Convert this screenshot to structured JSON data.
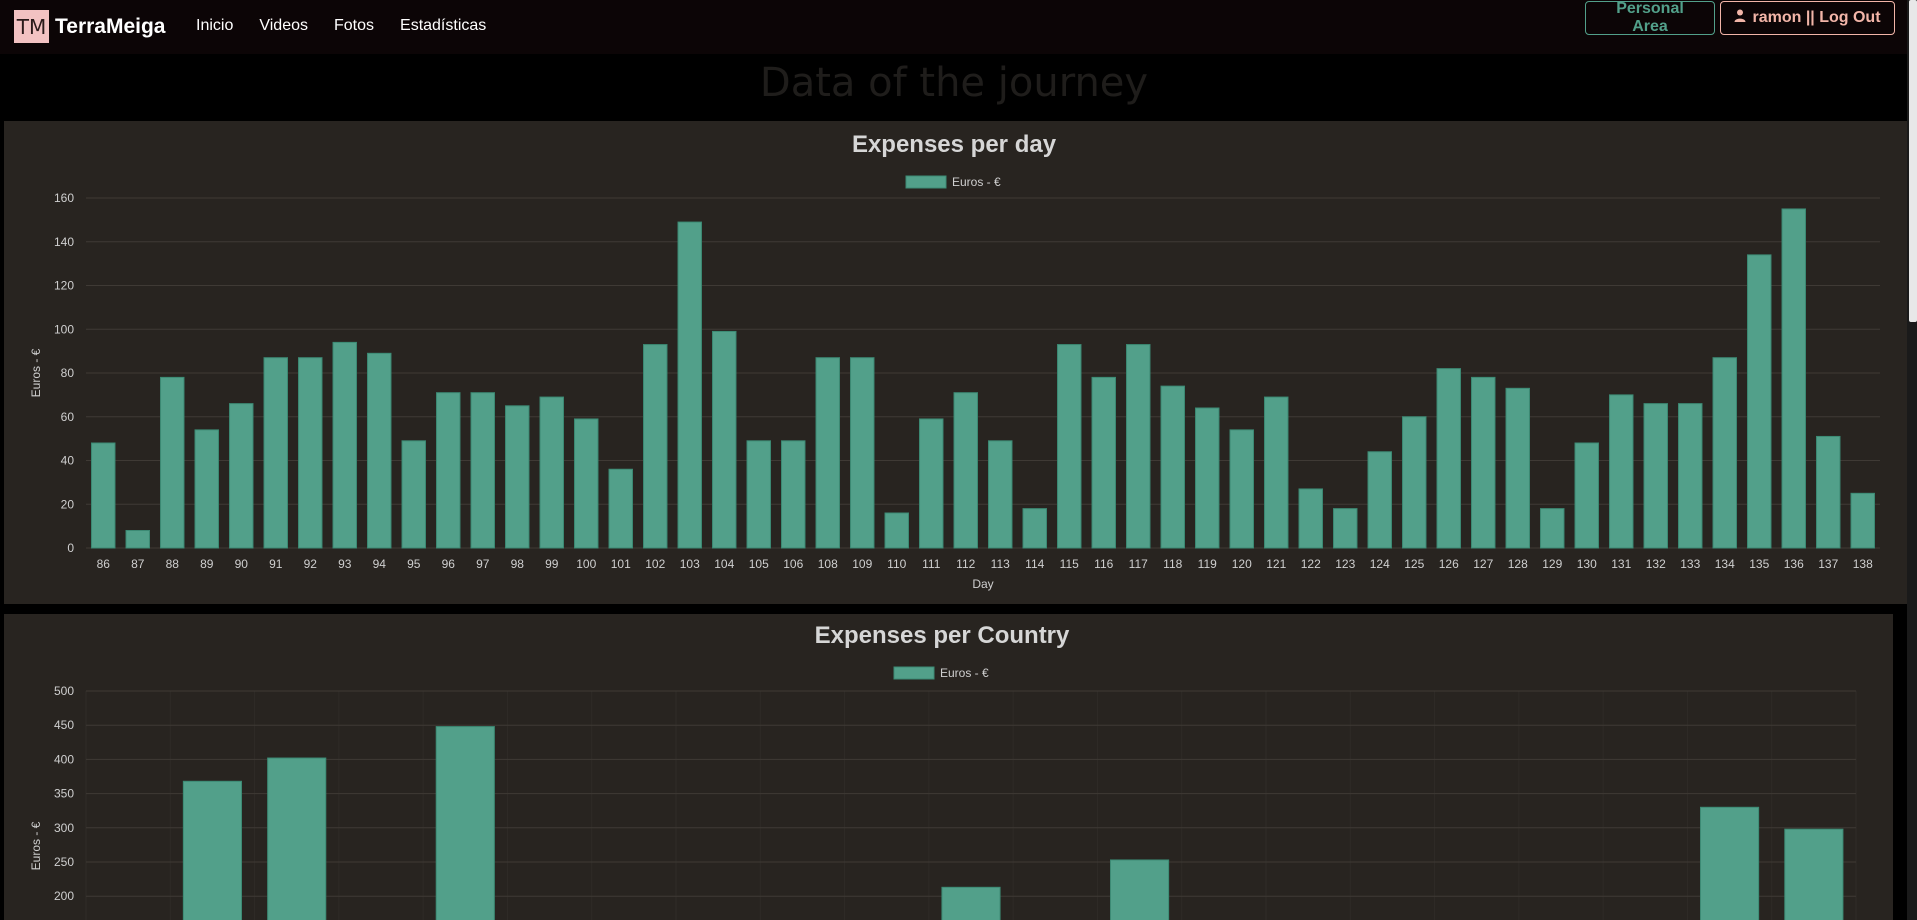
{
  "navbar": {
    "brand_logo": "TM",
    "brand_name": "TerraMeiga",
    "links": [
      "Inicio",
      "Videos",
      "Fotos",
      "Estadísticas"
    ],
    "personal_area": "Personal Area",
    "logout": "ramon || Log Out"
  },
  "page": {
    "title": "Data of the journey"
  },
  "colors": {
    "bar": "#52a08a",
    "panel": "#282420",
    "text": "#cfcfcf"
  },
  "chart_data": [
    {
      "type": "bar",
      "title": "Expenses per day",
      "legend": "Euros - €",
      "xlabel": "Day",
      "ylabel": "Euros - €",
      "ylim": [
        0,
        160
      ],
      "yticks": [
        0,
        20,
        40,
        60,
        80,
        100,
        120,
        140,
        160
      ],
      "grid": true,
      "categories": [
        "86",
        "87",
        "88",
        "89",
        "90",
        "91",
        "92",
        "93",
        "94",
        "95",
        "96",
        "97",
        "98",
        "99",
        "100",
        "101",
        "102",
        "103",
        "104",
        "105",
        "106",
        "108",
        "109",
        "110",
        "111",
        "112",
        "113",
        "114",
        "115",
        "116",
        "117",
        "118",
        "119",
        "120",
        "121",
        "122",
        "123",
        "124",
        "125",
        "126",
        "127",
        "128",
        "129",
        "130",
        "131",
        "132",
        "133",
        "134",
        "135",
        "136",
        "137",
        "138"
      ],
      "values": [
        48,
        8,
        78,
        54,
        66,
        87,
        87,
        94,
        89,
        49,
        71,
        71,
        65,
        69,
        59,
        36,
        93,
        149,
        99,
        49,
        49,
        87,
        87,
        16,
        59,
        71,
        49,
        18,
        93,
        78,
        93,
        74,
        64,
        54,
        69,
        27,
        18,
        44,
        60,
        82,
        78,
        73,
        18,
        48,
        70,
        66,
        66,
        87,
        134,
        155,
        51,
        25
      ]
    },
    {
      "type": "bar",
      "title": "Expenses per Country",
      "legend": "Euros - €",
      "ylabel": "Euros - €",
      "ylim": [
        0,
        500
      ],
      "yticks": [
        200,
        250,
        300,
        350,
        400,
        450,
        500
      ],
      "grid": true,
      "values": [
        null,
        368,
        402,
        null,
        448,
        null,
        null,
        null,
        null,
        null,
        213,
        null,
        253,
        null,
        null,
        null,
        null,
        null,
        null,
        330,
        298
      ]
    }
  ]
}
